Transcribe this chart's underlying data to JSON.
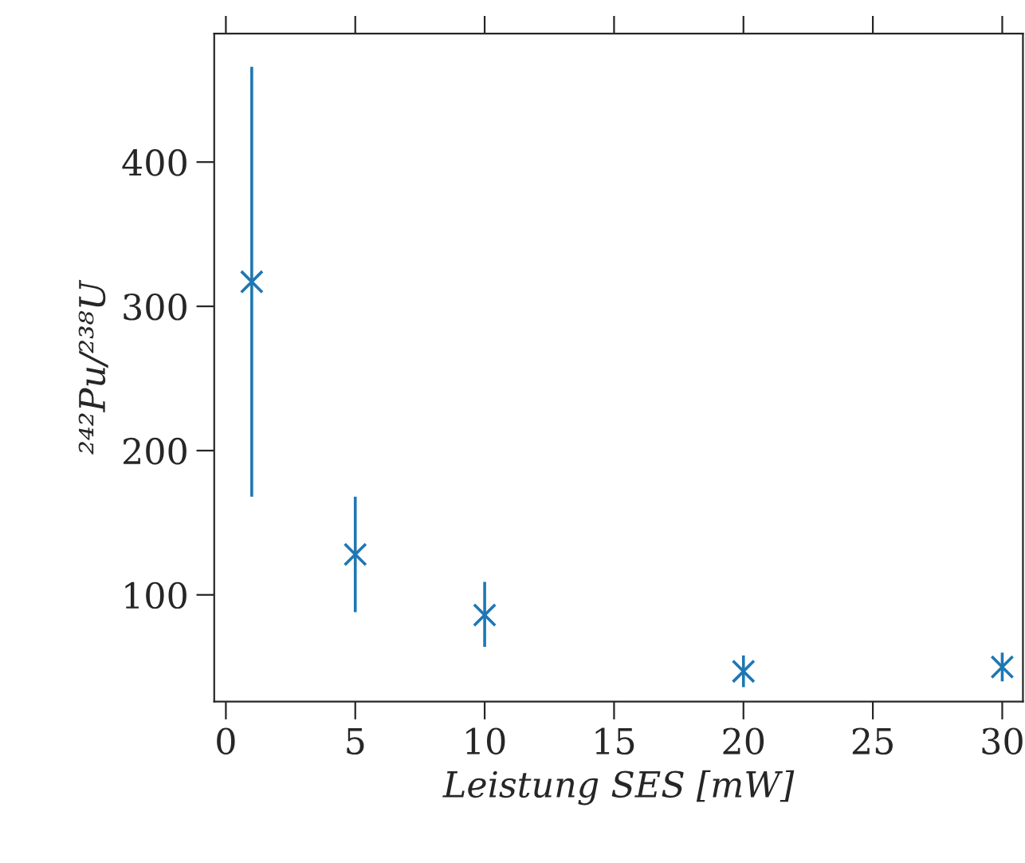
{
  "chart_data": {
    "type": "scatter",
    "xlabel": "Leistung SES [mW]",
    "ylabel": "²⁴²Pu/²³⁸U",
    "x": [
      1,
      5,
      10,
      20,
      30
    ],
    "series": [
      {
        "color": "#1f77b4",
        "values": [
          317,
          128,
          86,
          47,
          50
        ],
        "errors": [
          [
            168,
            466
          ],
          [
            88,
            168
          ],
          [
            64,
            109
          ],
          [
            36,
            58
          ],
          [
            40,
            60
          ]
        ]
      }
    ],
    "marker": "cross",
    "grid": false,
    "legend": false,
    "xlim": [
      -0.45,
      30.8
    ],
    "xticks": [
      0,
      5,
      10,
      15,
      20,
      25,
      30
    ],
    "ylim": [
      26,
      489
    ],
    "yticks": [
      100,
      200,
      300,
      400
    ]
  }
}
